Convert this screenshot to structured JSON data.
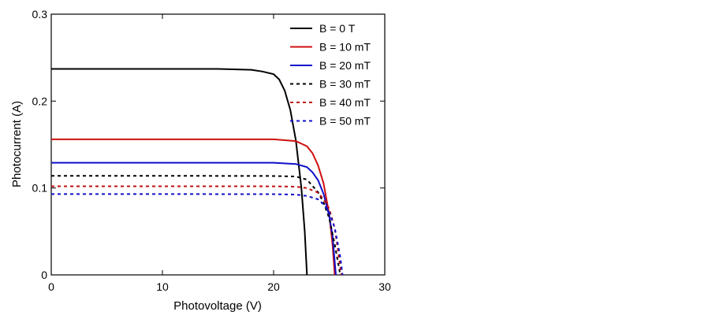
{
  "chart_data": {
    "type": "line",
    "title": "",
    "xlabel": "Photovoltage (V)",
    "ylabel": "Photocurrent (A)",
    "xlim": [
      0,
      30
    ],
    "ylim": [
      0,
      0.3
    ],
    "xticks": [
      0,
      10,
      20,
      30
    ],
    "xtick_labels": [
      "0",
      "10",
      "20",
      "30"
    ],
    "yticks": [
      0,
      0.1,
      0.2,
      0.3
    ],
    "ytick_labels": [
      "0",
      "0.1",
      "0.2",
      "0.3"
    ],
    "grid": false,
    "legend_placement": "top-right",
    "series": [
      {
        "name": "B = 0 T",
        "color": "#000000",
        "dash": "solid",
        "x": [
          0,
          10,
          15,
          18,
          19,
          20,
          20.5,
          21,
          21.5,
          22,
          22.5,
          22.8,
          23.0
        ],
        "y": [
          0.237,
          0.237,
          0.237,
          0.236,
          0.234,
          0.231,
          0.225,
          0.212,
          0.19,
          0.155,
          0.1,
          0.05,
          0
        ]
      },
      {
        "name": "B = 10 mT",
        "color": "#d01010",
        "dash": "solid",
        "x": [
          0,
          10,
          20,
          22,
          23,
          23.5,
          24,
          24.5,
          25,
          25.3,
          25.5
        ],
        "y": [
          0.156,
          0.156,
          0.156,
          0.154,
          0.148,
          0.14,
          0.126,
          0.105,
          0.07,
          0.035,
          0
        ]
      },
      {
        "name": "B = 20 mT",
        "color": "#1010c8",
        "dash": "solid",
        "x": [
          0,
          10,
          20,
          22,
          23,
          23.5,
          24,
          24.5,
          25,
          25.3,
          25.6
        ],
        "y": [
          0.129,
          0.129,
          0.129,
          0.1276,
          0.124,
          0.118,
          0.109,
          0.093,
          0.068,
          0.045,
          0
        ]
      },
      {
        "name": "B = 30 mT",
        "color": "#000000",
        "dash": "dotted",
        "x": [
          0,
          10,
          20,
          22,
          23,
          24,
          24.5,
          25,
          25.5,
          26.0
        ],
        "y": [
          0.114,
          0.114,
          0.1138,
          0.1132,
          0.1096,
          0.0952,
          0.083,
          0.0654,
          0.0349,
          0
        ]
      },
      {
        "name": "B = 40 mT",
        "color": "#c01010",
        "dash": "dotted",
        "x": [
          0,
          10,
          20,
          22,
          23,
          24,
          24.5,
          25,
          25.5,
          26.1
        ],
        "y": [
          0.102,
          0.102,
          0.1019,
          0.1015,
          0.0999,
          0.0946,
          0.087,
          0.0762,
          0.0538,
          0
        ]
      },
      {
        "name": "B = 50 mT",
        "color": "#1010c8",
        "dash": "dotted",
        "x": [
          0,
          10,
          20,
          22,
          23,
          24,
          24.5,
          25,
          25.5,
          26.0,
          26.2
        ],
        "y": [
          0.093,
          0.093,
          0.0929,
          0.0924,
          0.0908,
          0.087,
          0.081,
          0.0723,
          0.0542,
          0.0205,
          0
        ]
      }
    ]
  }
}
